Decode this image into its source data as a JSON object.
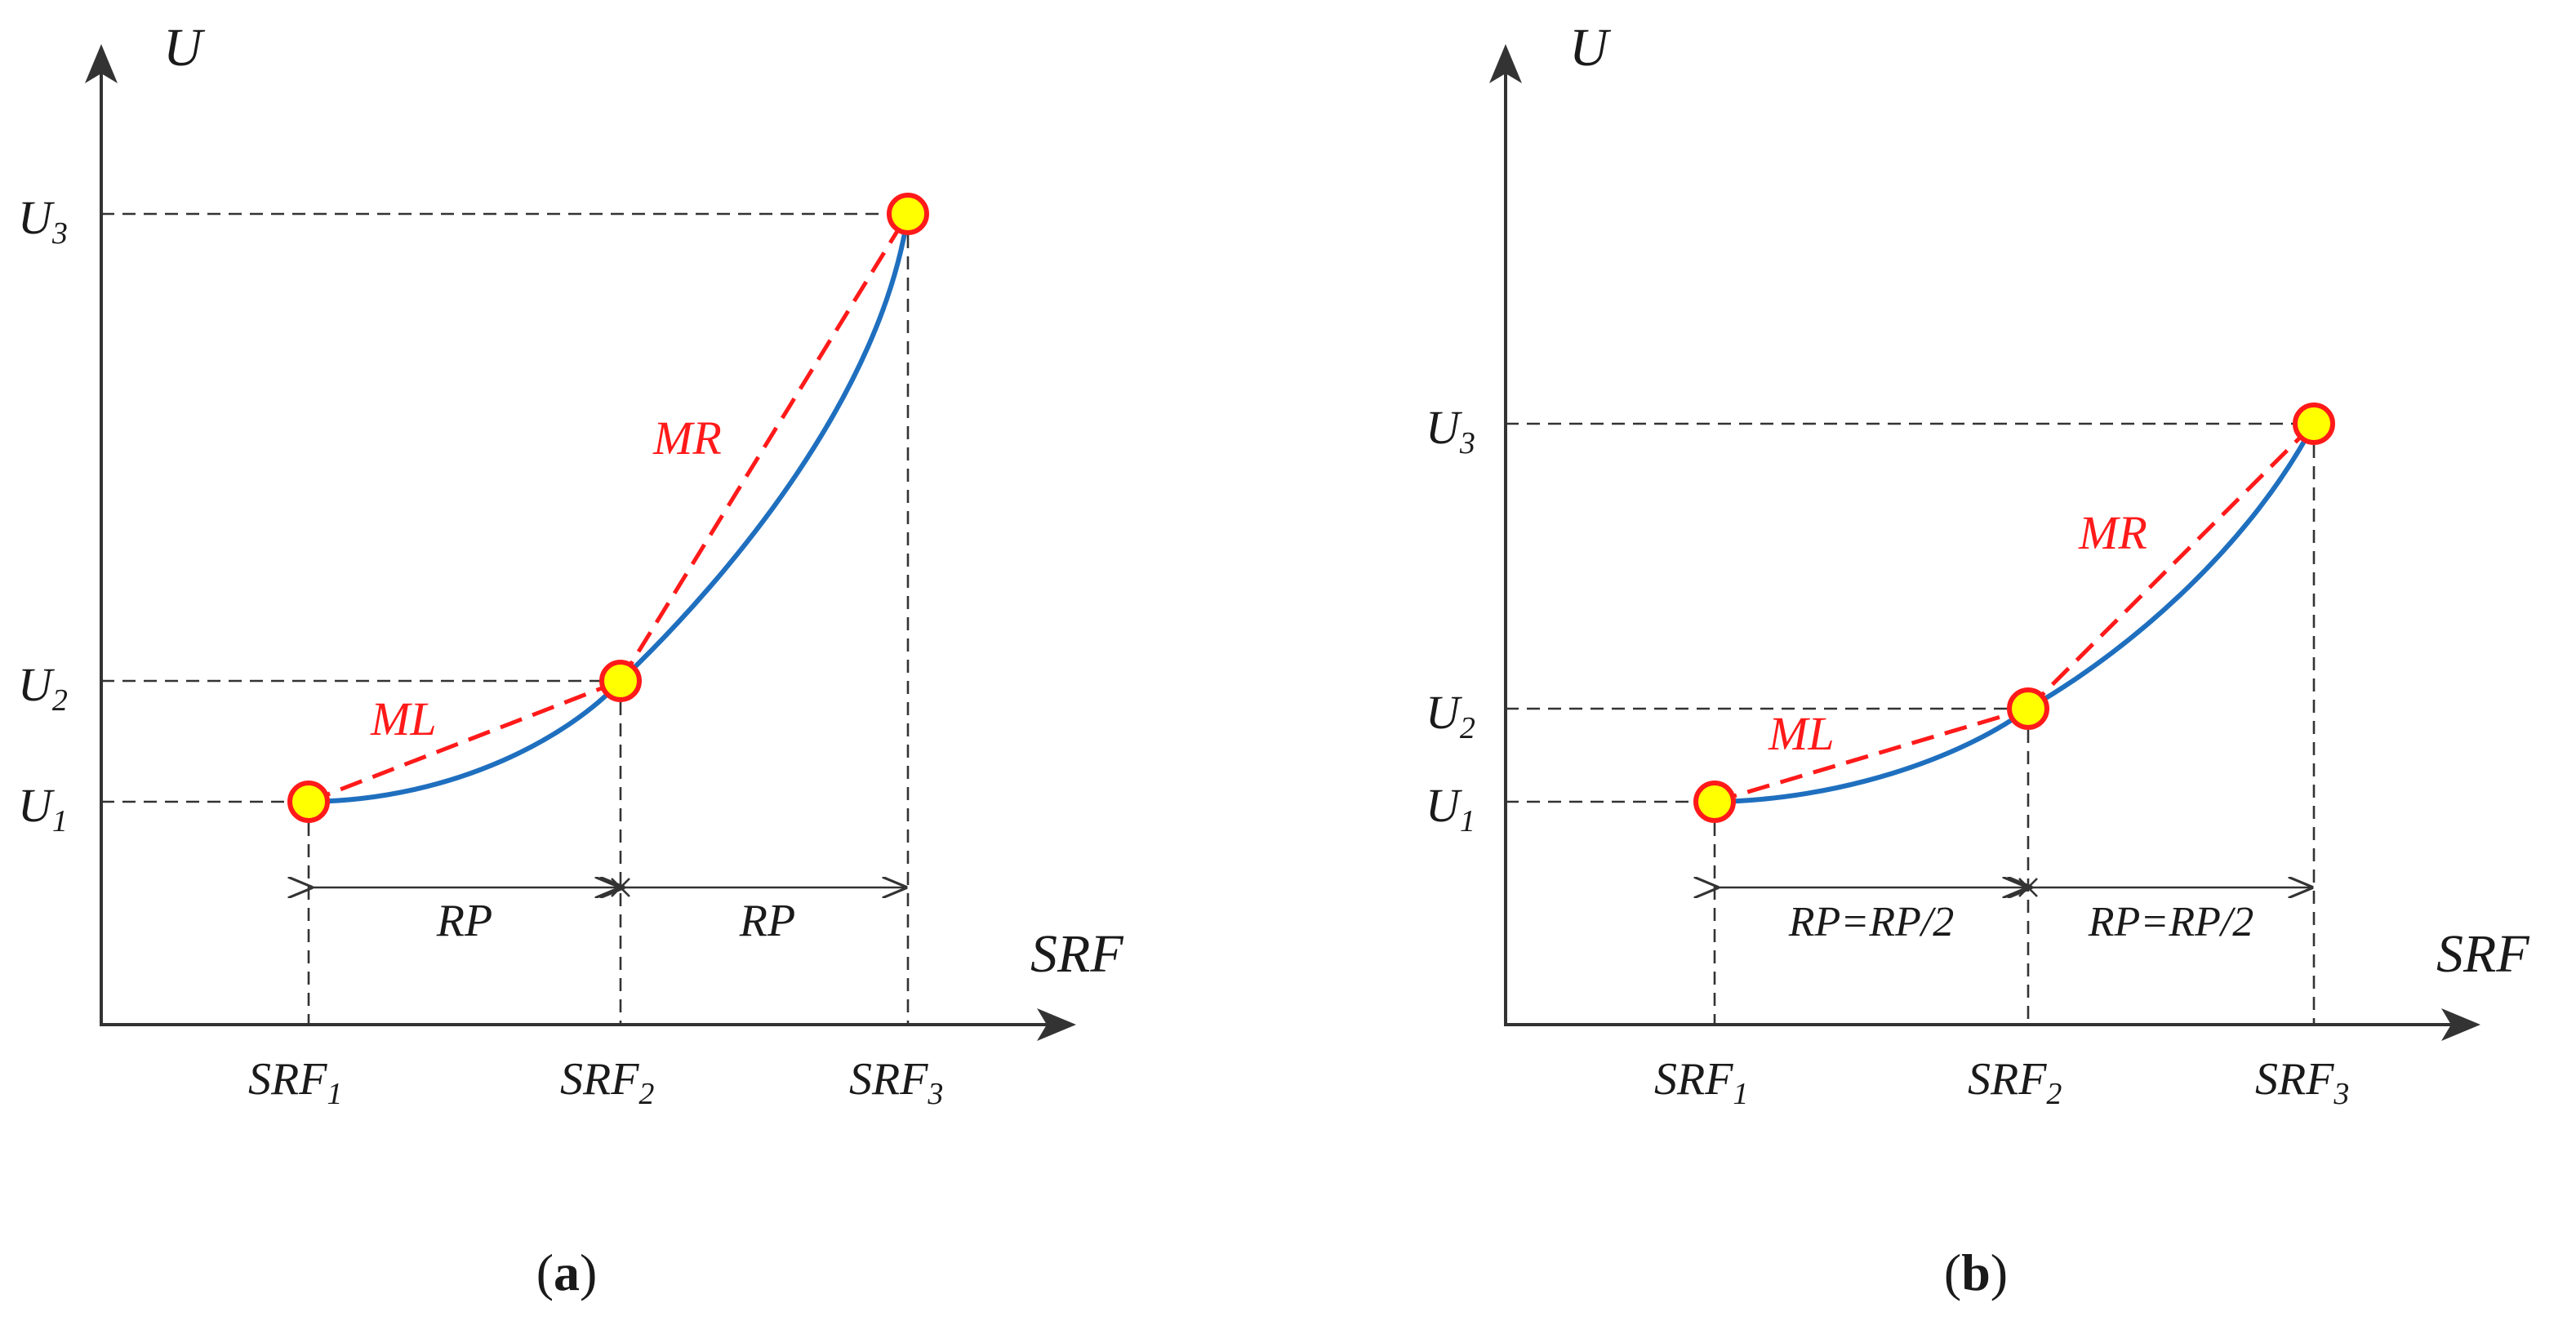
{
  "colors": {
    "curve": "#1f6fbf",
    "secant": "#ff1a1a",
    "point_fill": "#ffff00",
    "point_stroke": "#ff1a1a",
    "axis": "#333333"
  },
  "panel_a": {
    "y_axis": "U",
    "x_axis": "SRF",
    "u_labels": [
      "U",
      "U",
      "U"
    ],
    "u_subs": [
      "1",
      "2",
      "3"
    ],
    "srf_labels": [
      "SRF",
      "SRF",
      "SRF"
    ],
    "srf_subs": [
      "1",
      "2",
      "3"
    ],
    "ml": "ML",
    "mr": "MR",
    "rp_left": "RP",
    "rp_right": "RP",
    "caption": "(",
    "caption_letter": "a",
    "caption_close": ")"
  },
  "panel_b": {
    "y_axis": "U",
    "x_axis": "SRF",
    "u_labels": [
      "U",
      "U",
      "U"
    ],
    "u_subs": [
      "1",
      "2",
      "3"
    ],
    "srf_labels": [
      "SRF",
      "SRF",
      "SRF"
    ],
    "srf_subs": [
      "1",
      "2",
      "3"
    ],
    "ml": "ML",
    "mr": "MR",
    "rp_left": "RP=RP/2",
    "rp_right": "RP=RP/2",
    "caption": "(",
    "caption_letter": "b",
    "caption_close": ")"
  }
}
